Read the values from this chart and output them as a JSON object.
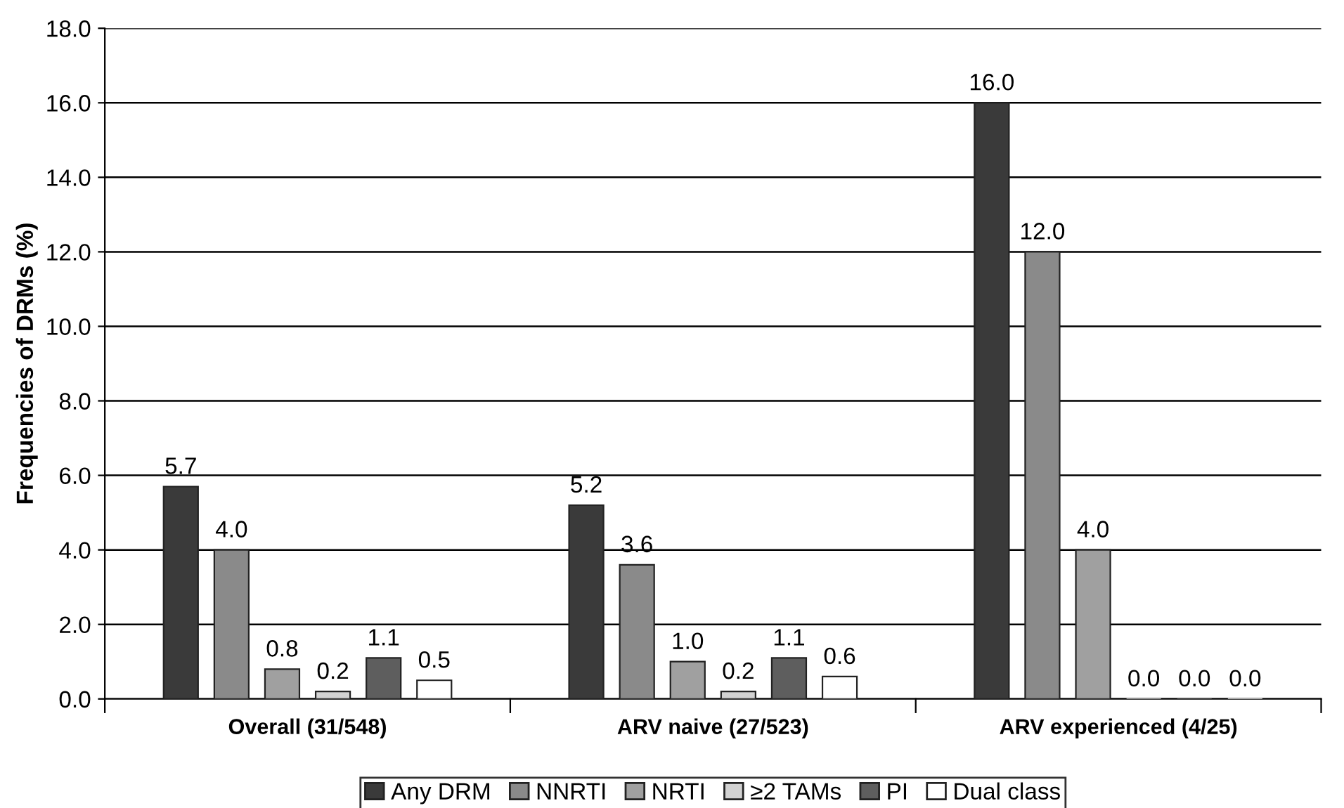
{
  "chart_data": {
    "type": "bar",
    "ylabel": "Frequencies of DRMs (%)",
    "categories": [
      "Overall (31/548)",
      "ARV naive (27/523)",
      "ARV experienced (4/25)"
    ],
    "series": [
      {
        "name": "Any DRM",
        "color": "#3a3a3a",
        "values": [
          5.7,
          5.2,
          16.0
        ],
        "value_labels": [
          "5.7",
          "5.2",
          "16.0"
        ]
      },
      {
        "name": "NNRTI",
        "color": "#8a8a8a",
        "values": [
          4.0,
          3.6,
          12.0
        ],
        "value_labels": [
          "4.0",
          "3.6",
          "12.0"
        ]
      },
      {
        "name": "NRTI",
        "color": "#a0a0a0",
        "values": [
          0.8,
          1.0,
          4.0
        ],
        "value_labels": [
          "0.8",
          "1.0",
          "4.0"
        ]
      },
      {
        "name": "≥2 TAMs",
        "color": "#d2d2d2",
        "values": [
          0.2,
          0.2,
          0.0
        ],
        "value_labels": [
          "0.2",
          "0.2",
          "0.0"
        ]
      },
      {
        "name": "PI",
        "color": "#5e5e5e",
        "values": [
          1.1,
          1.1,
          0.0
        ],
        "value_labels": [
          "1.1",
          "1.1",
          "0.0"
        ]
      },
      {
        "name": "Dual class",
        "color": "#ffffff",
        "values": [
          0.5,
          0.6,
          0.0
        ],
        "value_labels": [
          "0.5",
          "0.6",
          "0.0"
        ]
      }
    ],
    "ylim": [
      0,
      18
    ],
    "yticks": [
      {
        "value": 0,
        "label": "0.0"
      },
      {
        "value": 2,
        "label": "2.0"
      },
      {
        "value": 4,
        "label": "4.0"
      },
      {
        "value": 6,
        "label": "6.0"
      },
      {
        "value": 8,
        "label": "8.0"
      },
      {
        "value": 10,
        "label": "10.0"
      },
      {
        "value": 12,
        "label": "12.0"
      },
      {
        "value": 14,
        "label": "14.0"
      },
      {
        "value": 16,
        "label": "16.0"
      },
      {
        "value": 18,
        "label": "18.0"
      }
    ],
    "grid": "y",
    "legend": "bottom"
  }
}
